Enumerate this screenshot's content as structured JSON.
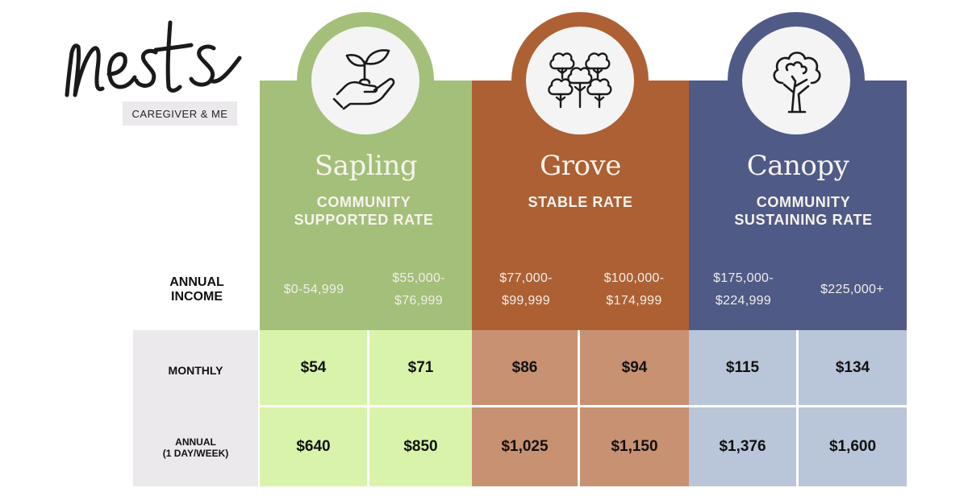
{
  "brand": {
    "logo_text": "nests",
    "subtitle": "CAREGIVER & ME"
  },
  "row_labels": {
    "income_line1": "ANNUAL",
    "income_line2": "INCOME",
    "monthly": "MONTHLY",
    "annual_line1": "ANNUAL",
    "annual_line2": "(1 DAY/WEEK)"
  },
  "tiers": [
    {
      "name": "Sapling",
      "subtitle_line1": "COMMUNITY",
      "subtitle_line2": "SUPPORTED RATE",
      "icon": "hand-sprout-icon",
      "color": "#a3bf79",
      "cell_color": "#d9f4aa",
      "incomes": [
        {
          "line1": "$0-54,999",
          "line2": ""
        },
        {
          "line1": "$55,000-",
          "line2": "$76,999"
        }
      ],
      "monthly": [
        "$54",
        "$71"
      ],
      "annual": [
        "$640",
        "$850"
      ]
    },
    {
      "name": "Grove",
      "subtitle_line1": "STABLE RATE",
      "subtitle_line2": "",
      "icon": "tree-grove-icon",
      "color": "#ad6033",
      "cell_color": "#c89172",
      "incomes": [
        {
          "line1": "$77,000-",
          "line2": "$99,999"
        },
        {
          "line1": "$100,000-",
          "line2": "$174,999"
        }
      ],
      "monthly": [
        "$86",
        "$94"
      ],
      "annual": [
        "$1,025",
        "$1,150"
      ]
    },
    {
      "name": "Canopy",
      "subtitle_line1": "COMMUNITY",
      "subtitle_line2": "SUSTAINING RATE",
      "icon": "tree-icon",
      "color": "#4f5a87",
      "cell_color": "#b9c5d8",
      "incomes": [
        {
          "line1": "$175,000-",
          "line2": "$224,999"
        },
        {
          "line1": "$225,000+",
          "line2": ""
        }
      ],
      "monthly": [
        "$115",
        "$134"
      ],
      "annual": [
        "$1,376",
        "$1,600"
      ]
    }
  ]
}
